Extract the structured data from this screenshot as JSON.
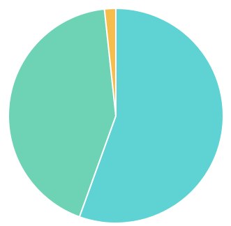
{
  "chart_data": {
    "type": "pie",
    "title": "",
    "slices": [
      {
        "value": 55.5,
        "color": "#5fd3d3"
      },
      {
        "value": 42.8,
        "color": "#6dd3b4"
      },
      {
        "value": 1.7,
        "color": "#f7bd4c"
      }
    ],
    "slice_border_color": "#ffffff"
  }
}
